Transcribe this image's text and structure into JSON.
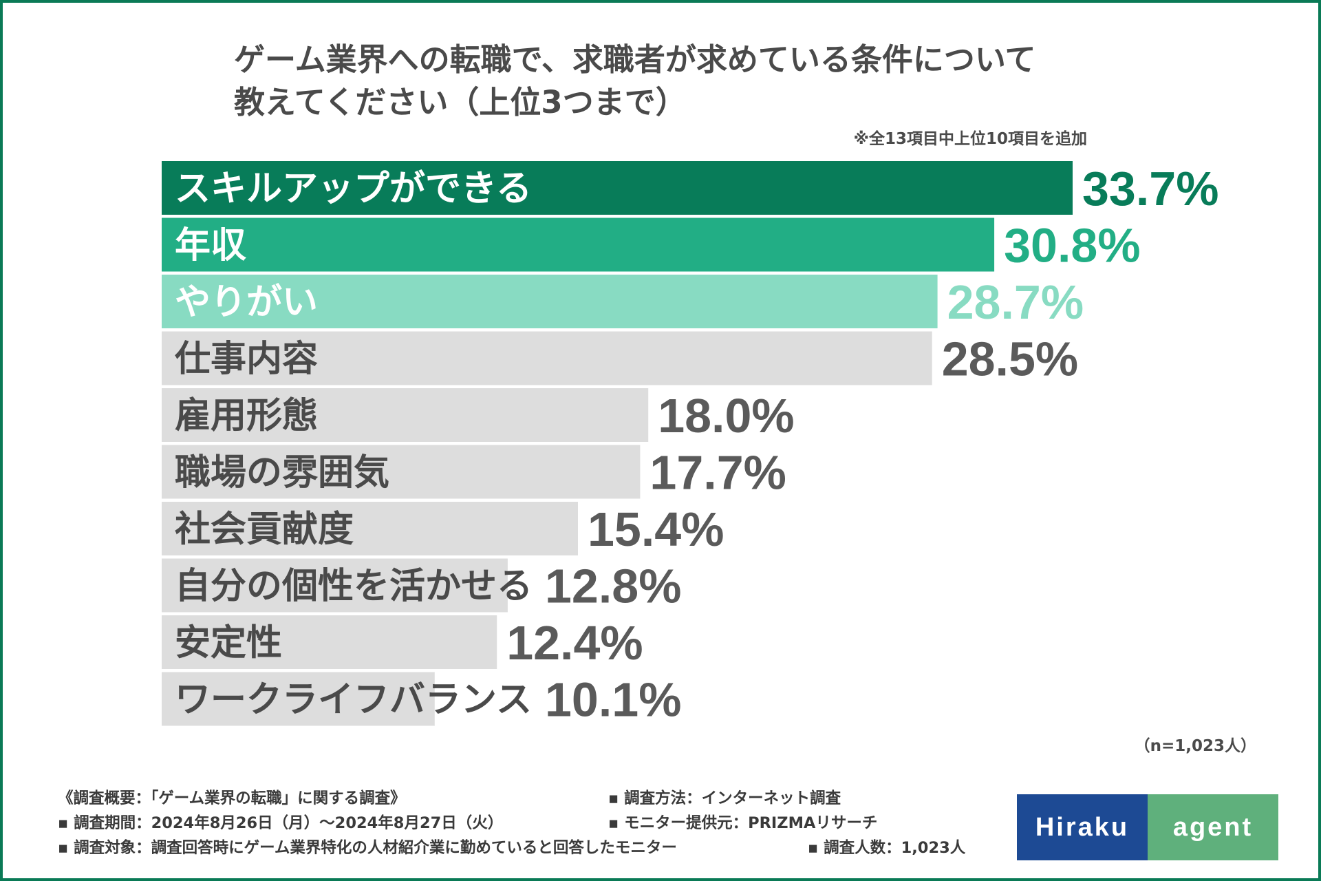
{
  "chart_data": {
    "type": "bar",
    "orientation": "horizontal",
    "title_lines": [
      "ゲーム業界への転職で、求職者が求めている条件について",
      "教えてください（上位3つまで）"
    ],
    "note": "※全13項目中上位10項目を追加",
    "unit": "%",
    "categories": [
      "スキルアップができる",
      "年収",
      "やりがい",
      "仕事内容",
      "雇用形態",
      "職場の雰囲気",
      "社会貢献度",
      "自分の個性を活かせる",
      "安定性",
      "ワークライフバランス"
    ],
    "values": [
      33.7,
      30.8,
      28.7,
      28.5,
      18.0,
      17.7,
      15.4,
      12.8,
      12.4,
      10.1
    ],
    "value_labels": [
      "33.7%",
      "30.8%",
      "28.7%",
      "28.5%",
      "18.0%",
      "17.7%",
      "15.4%",
      "12.8%",
      "12.4%",
      "10.1%"
    ],
    "xlim": [
      0,
      33.7
    ],
    "colors": {
      "rank1_bar": "#087c59",
      "rank2_bar": "#22ae85",
      "rank3_bar": "#88dbc2",
      "other_bar": "#dddddd",
      "rank1_value": "#087c59",
      "rank2_value": "#22ae85",
      "rank3_value": "#88dbc2",
      "other_value": "#5a5a5a",
      "top_label": "#ffffff",
      "other_label": "#4a4a4a"
    },
    "sample_size": "（n=1,023人）"
  },
  "footer": {
    "overview": "《調査概要：「ゲーム業界の転職」に関する調査》",
    "method": "▪ 調査方法：インターネット調査",
    "period": "▪ 調査期間：2024年8月26日（月）〜2024年8月27日（火）",
    "provider": "▪ モニター提供元：PRIZMAリサーチ",
    "target": "▪ 調査対象：調査回答時にゲーム業界特化の人材紹介業に勤めていると回答したモニター",
    "respondents": "▪ 調査人数：1,023人"
  },
  "logo": {
    "left_text": "Hiraku",
    "right_text": "agent"
  },
  "theme": {
    "frame_color": "#0a7a56",
    "logo_left_bg": "#1d4a94",
    "logo_right_bg": "#5fb07c"
  }
}
